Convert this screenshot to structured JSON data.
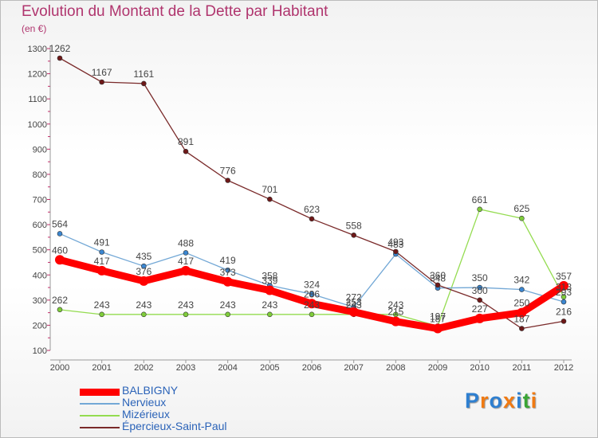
{
  "title": "Evolution du Montant de la Dette par Habitant",
  "subtitle": "(en €)",
  "logo": {
    "text": "Proxiti",
    "colors": [
      "#2e7fd0",
      "#f07a12",
      "#2e7fd0",
      "#f07a12",
      "#2e7fd0",
      "#3aa534",
      "#f07a12"
    ]
  },
  "chart_data": {
    "type": "line",
    "x": [
      "2000",
      "2001",
      "2002",
      "2003",
      "2004",
      "2005",
      "2006",
      "2007",
      "2008",
      "2009",
      "2010",
      "2011",
      "2012"
    ],
    "ylim": [
      100,
      1300
    ],
    "yticks": [
      100,
      200,
      300,
      400,
      500,
      600,
      700,
      800,
      900,
      1000,
      1100,
      1200,
      1300
    ],
    "grid": false,
    "legend_position": "bottom-left",
    "series": [
      {
        "name": "Mizérieux",
        "color": "#94dc50",
        "marker": "#7fcd3a",
        "values": [
          262,
          243,
          243,
          243,
          243,
          243,
          243,
          243,
          243,
          197,
          661,
          625,
          313
        ]
      },
      {
        "name": "Nervieux",
        "color": "#73a8d6",
        "marker": "#3b86d0",
        "values": [
          564,
          491,
          435,
          488,
          419,
          358,
          324,
          272,
          483,
          348,
          350,
          342,
          293
        ]
      },
      {
        "name": "Épercieux-Saint-Paul",
        "color": "#7a2a2a",
        "marker": "#6e1818",
        "values": [
          1262,
          1167,
          1161,
          891,
          776,
          701,
          623,
          558,
          493,
          360,
          300,
          187,
          216
        ]
      },
      {
        "name": "BALBIGNY",
        "color": "#ff0000",
        "marker": "#ff0000",
        "thick": true,
        "values": [
          460,
          417,
          376,
          417,
          373,
          339,
          286,
          253,
          215,
          187,
          227,
          250,
          357
        ]
      }
    ],
    "legend": [
      {
        "name": "BALBIGNY",
        "color": "#ff0000"
      },
      {
        "name": "Nervieux",
        "color": "#73a8d6"
      },
      {
        "name": "Mizérieux",
        "color": "#94dc50"
      },
      {
        "name": "Épercieux-Saint-Paul",
        "color": "#7a2a2a"
      }
    ]
  }
}
